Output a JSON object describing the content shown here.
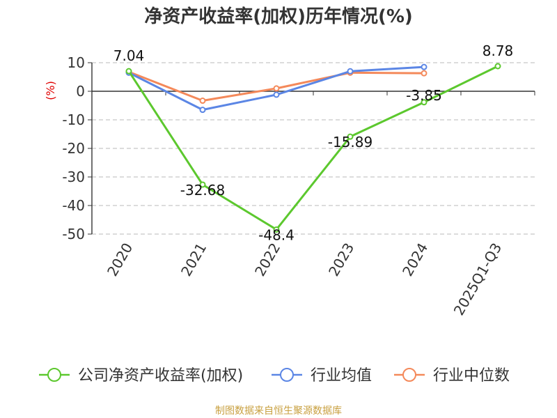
{
  "chart_data": {
    "type": "line",
    "title": "净资产收益率(加权)历年情况(%)",
    "ylabel": "(%)",
    "xlabel": "",
    "categories": [
      "2020",
      "2021",
      "2022",
      "2023",
      "2024",
      "2025Q1-Q3"
    ],
    "ylim": [
      -50,
      10
    ],
    "yticks": [
      10,
      0,
      -10,
      -20,
      -30,
      -40,
      -50
    ],
    "grid": true,
    "legend_position": "bottom",
    "series": [
      {
        "name": "公司净资产收益率(加权)",
        "color": "#5cc82e",
        "values": [
          7.04,
          -32.68,
          -48.4,
          -15.89,
          -3.85,
          8.78
        ],
        "labels": [
          "7.04",
          "-32.68",
          "-48.4",
          "-15.89",
          "-3.85",
          "8.78"
        ]
      },
      {
        "name": "行业均值",
        "color": "#5b86e5",
        "values": [
          6.5,
          -6.5,
          -1.2,
          7.0,
          8.5,
          null
        ]
      },
      {
        "name": "行业中位数",
        "color": "#f4895a",
        "values": [
          6.8,
          -3.3,
          1.0,
          6.5,
          6.3,
          null
        ]
      }
    ]
  },
  "source": "制图数据来自恒生聚源数据库"
}
